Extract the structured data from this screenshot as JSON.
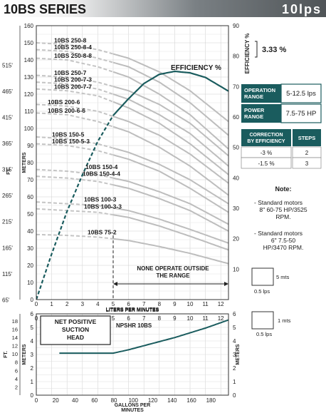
{
  "header": {
    "title": "10BS SERIES",
    "flow_rating": "10lps",
    "header_color": "#5b6064"
  },
  "main_chart": {
    "xlabel": "LITERS PER MINUTES",
    "left_ft_label": "FT.",
    "left_m_label": "METERS",
    "right_label": "EFFICIENCY %",
    "x_ticks": [
      0,
      1,
      2,
      3,
      4,
      5,
      6,
      7,
      8,
      9,
      10,
      11,
      12
    ],
    "m_ticks": [
      0,
      10,
      20,
      30,
      40,
      50,
      60,
      70,
      80,
      90,
      100,
      110,
      120,
      130,
      140,
      150,
      160
    ],
    "ft_ticks": [
      "65'",
      "115'",
      "165'",
      "215'",
      "265'",
      "315'",
      "365'",
      "415'",
      "465'",
      "515'"
    ],
    "eff_ticks": [
      10,
      20,
      30,
      40,
      50,
      60,
      70,
      80,
      90
    ],
    "efficiency_label": "EFFICIENCY %",
    "none_operate_label": [
      "NONE OPERATE OUTSIDE",
      "THE RANGE"
    ],
    "ylim": [
      0,
      160
    ],
    "xlim": [
      0,
      12.5
    ],
    "curve_color": "#bdbdbd",
    "efficiency_color": "#1a5c5e"
  },
  "chart_data": [
    {
      "type": "line",
      "xlabel": "LITERS PER MINUTES",
      "ylabel": "METERS",
      "y2label": "EFFICIENCY %",
      "xlim": [
        0,
        12.5
      ],
      "ylim": [
        0,
        160
      ],
      "y2lim": [
        0,
        90
      ],
      "series": [
        {
          "name": "10BS 250-8",
          "x": [
            0,
            2,
            4,
            6,
            8,
            10,
            12.5
          ],
          "y": [
            150,
            149,
            146,
            141,
            133,
            122,
            104
          ]
        },
        {
          "name": "10BS 250-8-4",
          "x": [
            0,
            2,
            4,
            6,
            8,
            10,
            12.5
          ],
          "y": [
            146,
            145,
            141,
            136,
            127,
            115,
            96
          ]
        },
        {
          "name": "10BS 250-8-8",
          "x": [
            0,
            2,
            4,
            6,
            8,
            10,
            12.5
          ],
          "y": [
            141,
            140,
            136,
            130,
            120,
            108,
            88
          ]
        },
        {
          "name": "10BS 250-7",
          "x": [
            0,
            2,
            4,
            6,
            8,
            10,
            12.5
          ],
          "y": [
            131,
            130,
            127,
            122,
            114,
            103,
            84
          ]
        },
        {
          "name": "10BS 200-7-3",
          "x": [
            0,
            2,
            4,
            6,
            8,
            10,
            12.5
          ],
          "y": [
            127,
            126,
            123,
            117,
            108,
            97,
            78
          ]
        },
        {
          "name": "10BS 200-7-7",
          "x": [
            0,
            2,
            4,
            6,
            8,
            10,
            12.5
          ],
          "y": [
            123,
            122,
            119,
            112,
            103,
            91,
            73
          ]
        },
        {
          "name": "10BS 200-6",
          "x": [
            0,
            2,
            4,
            6,
            8,
            10,
            12.5
          ],
          "y": [
            114,
            113,
            110,
            104,
            96,
            85,
            68
          ]
        },
        {
          "name": "10BS 200-6-6",
          "x": [
            0,
            2,
            4,
            6,
            8,
            10,
            12.5
          ],
          "y": [
            109,
            108,
            104,
            98,
            89,
            78,
            61
          ]
        },
        {
          "name": "10BS 150-5",
          "x": [
            0,
            2,
            4,
            6,
            8,
            10,
            12.5
          ],
          "y": [
            95,
            94,
            91,
            86,
            79,
            70,
            56
          ]
        },
        {
          "name": "10BS 150-5-3",
          "x": [
            0,
            2,
            4,
            6,
            8,
            10,
            12.5
          ],
          "y": [
            91,
            90,
            87,
            82,
            75,
            65,
            51
          ]
        },
        {
          "name": "10BS 150-4",
          "x": [
            0,
            2,
            4,
            6,
            8,
            10,
            12.5
          ],
          "y": [
            76,
            75,
            73,
            69,
            63,
            56,
            44
          ]
        },
        {
          "name": "10BS 150-4-4",
          "x": [
            0,
            2,
            4,
            6,
            8,
            10,
            12.5
          ],
          "y": [
            72,
            71,
            69,
            65,
            59,
            52,
            40
          ]
        },
        {
          "name": "10BS 100-3",
          "x": [
            0,
            2,
            4,
            6,
            8,
            10,
            12.5
          ],
          "y": [
            57,
            56,
            55,
            52,
            47,
            41,
            33
          ]
        },
        {
          "name": "10BS 100-3-3",
          "x": [
            0,
            2,
            4,
            6,
            8,
            10,
            12.5
          ],
          "y": [
            53,
            52,
            51,
            48,
            43,
            37,
            29
          ]
        },
        {
          "name": "10BS 75-2",
          "x": [
            0,
            2,
            4,
            6,
            8,
            10,
            12.5
          ],
          "y": [
            38,
            37.5,
            36.5,
            34.5,
            31,
            27,
            21
          ]
        },
        {
          "name": "EFFICIENCY %",
          "axis": "right",
          "x": [
            0,
            1,
            2,
            3,
            4,
            5,
            6,
            7,
            8,
            9,
            10,
            11,
            12,
            12.5
          ],
          "y": [
            0,
            15,
            29,
            41,
            52,
            60.5,
            66,
            71,
            74,
            75,
            74.5,
            73,
            70,
            68.5
          ]
        }
      ],
      "annotations": [
        "NONE OPERATE OUTSIDE THE RANGE"
      ]
    },
    {
      "type": "line",
      "title": "NPSHR 10BS",
      "xlabel": "LITERS PER MINUTES",
      "x2label": "GALLONS PER MINUTES",
      "ylabel": "METERS",
      "xlim": [
        0,
        12.5
      ],
      "ylim": [
        0,
        6
      ],
      "series": [
        {
          "name": "NPSHR 10BS",
          "x": [
            1.5,
            2,
            3,
            4,
            5,
            6,
            7,
            8,
            9,
            10,
            11,
            12,
            12.5
          ],
          "y": [
            3.1,
            3.1,
            3.1,
            3.1,
            3.1,
            3.35,
            3.65,
            3.95,
            4.25,
            4.6,
            4.95,
            5.35,
            5.55
          ]
        }
      ]
    }
  ],
  "npsh_chart": {
    "box_lines": [
      "NET POSITIVE",
      "SUCTION",
      "HEAD"
    ],
    "title": "NPSHR 10BS",
    "xlabel": "LITERS PER MINUTES",
    "x2label": [
      "GALLONS PER",
      "MINUTES"
    ],
    "m_ticks": [
      0,
      1,
      2,
      3,
      4,
      5,
      6
    ],
    "ft_ticks": [
      2,
      4,
      6,
      8,
      10,
      12,
      14,
      16,
      18
    ],
    "gpm_ticks": [
      0,
      20,
      40,
      60,
      80,
      100,
      120,
      140,
      160,
      180
    ],
    "left_ft_label": "FT.",
    "left_m_label": "METERS",
    "right_m_label": "METERS"
  },
  "side_panel": {
    "efficiency_value": "3.33 %",
    "operation_range_label": [
      "OPERATION",
      "RANGE"
    ],
    "operation_range_value": "5-12.5 lps",
    "power_range_label": [
      "POWER",
      "RANGE"
    ],
    "power_range_value": "7.5-75 HP",
    "correction_header": [
      "CORRECTION",
      "BY EFFICIENCY"
    ],
    "steps_header": "STEPS",
    "correction_rows": [
      {
        "eff": "-3 %",
        "steps": "2"
      },
      {
        "eff": "-1.5 %",
        "steps": "3"
      }
    ],
    "note_title": "Note:",
    "notes": [
      [
        "- Standard motors",
        "8\" 60-75 HP/3525",
        "RPM."
      ],
      [
        "- Standard motors",
        "6\" 7.5-50",
        "HP/3470 RPM."
      ]
    ],
    "scale1_value": "5 mts",
    "scale1_lps": "0.5 lps",
    "scale2_value": "1 mts",
    "scale2_lps": "0.5 lps",
    "panel_color": "#1a5c5e"
  }
}
